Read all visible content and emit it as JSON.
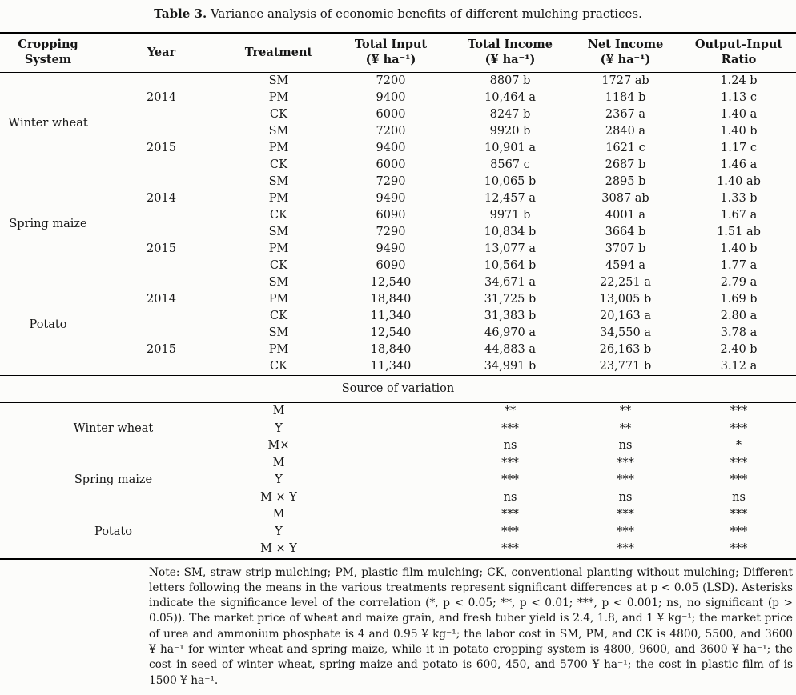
{
  "title": {
    "label": "Table 3.",
    "caption": " Variance analysis of economic benefits of different mulching practices."
  },
  "table": {
    "columns": [
      {
        "line1": "Cropping",
        "line2": "System"
      },
      {
        "line1": "Year",
        "line2": ""
      },
      {
        "line1": "Treatment",
        "line2": ""
      },
      {
        "line1": "Total Input",
        "line2": "(¥ ha⁻¹)"
      },
      {
        "line1": "Total Income",
        "line2": "(¥ ha⁻¹)"
      },
      {
        "line1": "Net Income",
        "line2": "(¥ ha⁻¹)"
      },
      {
        "line1": "Output–Input",
        "line2": "Ratio"
      }
    ],
    "groups": [
      {
        "name": "Winter wheat",
        "years": [
          {
            "year": "2014",
            "rows": [
              [
                "SM",
                "7200",
                "8807 b",
                "1727 ab",
                "1.24 b"
              ],
              [
                "PM",
                "9400",
                "10,464 a",
                "1184 b",
                "1.13 c"
              ],
              [
                "CK",
                "6000",
                "8247 b",
                "2367 a",
                "1.40 a"
              ]
            ]
          },
          {
            "year": "2015",
            "rows": [
              [
                "SM",
                "7200",
                "9920 b",
                "2840 a",
                "1.40 b"
              ],
              [
                "PM",
                "9400",
                "10,901 a",
                "1621 c",
                "1.17 c"
              ],
              [
                "CK",
                "6000",
                "8567 c",
                "2687 b",
                "1.46 a"
              ]
            ]
          }
        ]
      },
      {
        "name": "Spring maize",
        "years": [
          {
            "year": "2014",
            "rows": [
              [
                "SM",
                "7290",
                "10,065 b",
                "2895 b",
                "1.40 ab"
              ],
              [
                "PM",
                "9490",
                "12,457 a",
                "3087 ab",
                "1.33 b"
              ],
              [
                "CK",
                "6090",
                "9971 b",
                "4001 a",
                "1.67 a"
              ]
            ]
          },
          {
            "year": "2015",
            "rows": [
              [
                "SM",
                "7290",
                "10,834 b",
                "3664 b",
                "1.51 ab"
              ],
              [
                "PM",
                "9490",
                "13,077 a",
                "3707 b",
                "1.40 b"
              ],
              [
                "CK",
                "6090",
                "10,564 b",
                "4594 a",
                "1.77 a"
              ]
            ]
          }
        ]
      },
      {
        "name": "Potato",
        "years": [
          {
            "year": "2014",
            "rows": [
              [
                "SM",
                "12,540",
                "34,671 a",
                "22,251 a",
                "2.79 a"
              ],
              [
                "PM",
                "18,840",
                "31,725 b",
                "13,005 b",
                "1.69 b"
              ],
              [
                "CK",
                "11,340",
                "31,383 b",
                "20,163 a",
                "2.80 a"
              ]
            ]
          },
          {
            "year": "2015",
            "rows": [
              [
                "SM",
                "12,540",
                "46,970 a",
                "34,550 a",
                "3.78 a"
              ],
              [
                "PM",
                "18,840",
                "44,883 a",
                "26,163 b",
                "2.40 b"
              ],
              [
                "CK",
                "11,340",
                "34,991 b",
                "23,771 b",
                "3.12 a"
              ]
            ]
          }
        ]
      }
    ],
    "source_of_variation": {
      "header": "Source of variation",
      "groups": [
        {
          "name": "Winter wheat",
          "rows": [
            {
              "factor": "M",
              "total_income": "**",
              "net_income": "**",
              "ratio": "***"
            },
            {
              "factor": "Y",
              "total_income": "***",
              "net_income": "**",
              "ratio": "***"
            },
            {
              "factor": "M×",
              "total_income": "ns",
              "net_income": "ns",
              "ratio": "*"
            }
          ]
        },
        {
          "name": "Spring maize",
          "rows": [
            {
              "factor": "M",
              "total_income": "***",
              "net_income": "***",
              "ratio": "***"
            },
            {
              "factor": "Y",
              "total_income": "***",
              "net_income": "***",
              "ratio": "***"
            },
            {
              "factor": "M × Y",
              "total_income": "ns",
              "net_income": "ns",
              "ratio": "ns"
            }
          ]
        },
        {
          "name": "Potato",
          "rows": [
            {
              "factor": "M",
              "total_income": "***",
              "net_income": "***",
              "ratio": "***"
            },
            {
              "factor": "Y",
              "total_income": "***",
              "net_income": "***",
              "ratio": "***"
            },
            {
              "factor": "M × Y",
              "total_income": "***",
              "net_income": "***",
              "ratio": "***"
            }
          ]
        }
      ]
    }
  },
  "note": {
    "text": "Note: SM, straw strip mulching; PM, plastic film mulching; CK, conventional planting without mulching; Different letters following the means in the various treatments represent significant differences at p < 0.05 (LSD). Asterisks indicate the significance level of the correlation (*, p < 0.05; **, p < 0.01; ***, p < 0.001; ns, no significant (p > 0.05)). The market price of wheat and maize grain, and fresh tuber yield is 2.4, 1.8, and 1 ¥ kg⁻¹; the market price of urea and ammonium phosphate is 4 and 0.95 ¥ kg⁻¹; the labor cost in SM, PM, and CK is 4800, 5500, and 3600 ¥ ha⁻¹ for winter wheat and spring maize, while it in potato cropping system is 4800, 9600, and 3600 ¥ ha⁻¹; the cost in seed of winter wheat, spring maize and potato is 600, 450, and 5700 ¥ ha⁻¹; the cost in plastic film of is 1500 ¥ ha⁻¹."
  }
}
